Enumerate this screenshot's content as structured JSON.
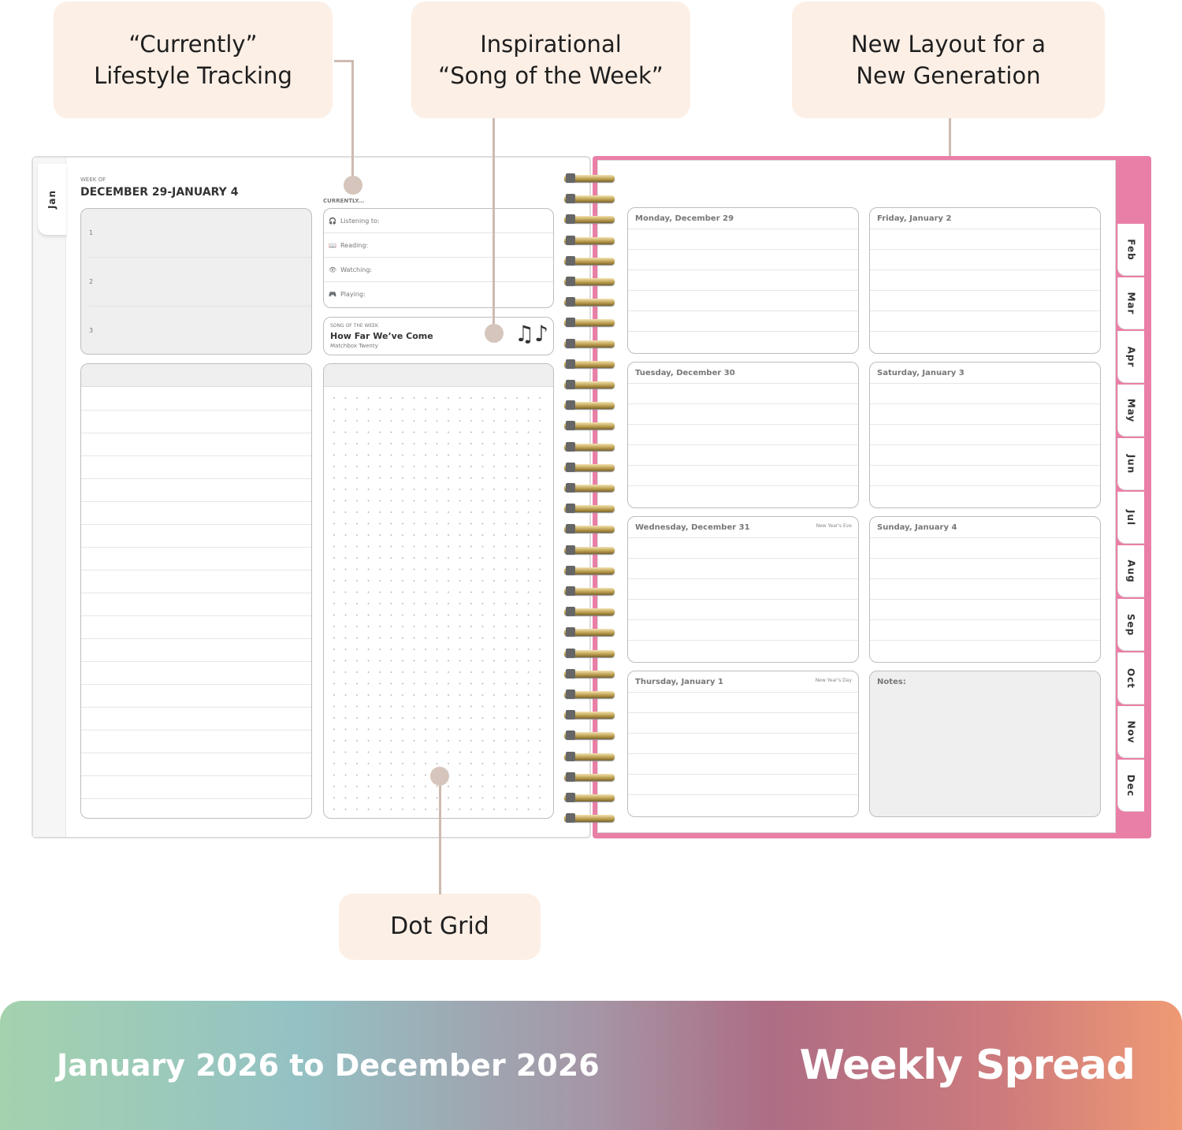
{
  "callouts": {
    "currently": "“Currently”\nLifestyle Tracking",
    "song": "Inspirational\n“Song of the Week”",
    "layout": "New Layout for a\nNew Generation",
    "dot_grid": "Dot Grid"
  },
  "left_page": {
    "tab": "Jan",
    "week_of_label": "WEEK OF",
    "week_title": "DECEMBER 29-JANUARY 4",
    "priorities": [
      "1",
      "2",
      "3"
    ],
    "currently_label": "CURRENTLY...",
    "currently_items": [
      {
        "icon": "headphones-icon",
        "label": "Listening to:"
      },
      {
        "icon": "book-icon",
        "label": "Reading:"
      },
      {
        "icon": "eye-icon",
        "label": "Watching:"
      },
      {
        "icon": "gamepad-icon",
        "label": "Playing:"
      }
    ],
    "song": {
      "label": "SONG OF THE WEEK",
      "title": "How Far We’ve Come",
      "artist": "Matchbox Twenty",
      "icon": "music-notes-icon"
    }
  },
  "right_page": {
    "days": [
      {
        "title": "Monday, December 29",
        "holiday": ""
      },
      {
        "title": "Friday, January 2",
        "holiday": ""
      },
      {
        "title": "Tuesday, December 30",
        "holiday": ""
      },
      {
        "title": "Saturday, January 3",
        "holiday": ""
      },
      {
        "title": "Wednesday, December 31",
        "holiday": "New Year's Eve"
      },
      {
        "title": "Sunday, January 4",
        "holiday": ""
      },
      {
        "title": "Thursday, January 1",
        "holiday": "New Year's Day"
      }
    ],
    "notes_label": "Notes:",
    "month_tabs": [
      "Feb",
      "Mar",
      "Apr",
      "May",
      "Jun",
      "Jul",
      "Aug",
      "Sep",
      "Oct",
      "Nov",
      "Dec"
    ],
    "cover_color": "#e97fa7"
  },
  "banner": {
    "date_range": "January 2026 to December 2026",
    "title": "Weekly Spread"
  }
}
